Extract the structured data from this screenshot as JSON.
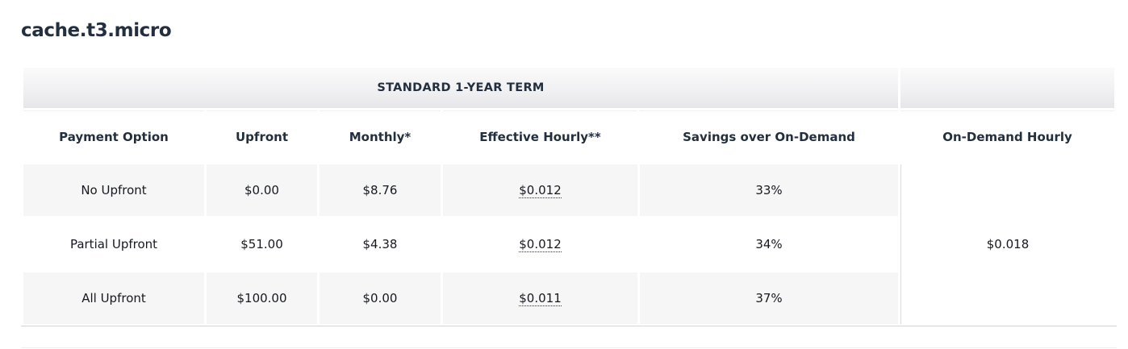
{
  "instance": {
    "title": "cache.t3.micro"
  },
  "table": {
    "term_header": "STANDARD 1-YEAR TERM",
    "columns": {
      "payment_option": "Payment Option",
      "upfront": "Upfront",
      "monthly": "Monthly*",
      "effective_hourly": "Effective Hourly**",
      "savings": "Savings over On-Demand",
      "on_demand_hourly": "On-Demand Hourly"
    },
    "rows": [
      {
        "payment_option": "No Upfront",
        "upfront": "$0.00",
        "monthly": "$8.76",
        "effective_hourly": "$0.012",
        "savings": "33%"
      },
      {
        "payment_option": "Partial Upfront",
        "upfront": "$51.00",
        "monthly": "$4.38",
        "effective_hourly": "$0.012",
        "savings": "34%"
      },
      {
        "payment_option": "All Upfront",
        "upfront": "$100.00",
        "monthly": "$0.00",
        "effective_hourly": "$0.011",
        "savings": "37%"
      }
    ],
    "on_demand_hourly_value": "$0.018"
  }
}
